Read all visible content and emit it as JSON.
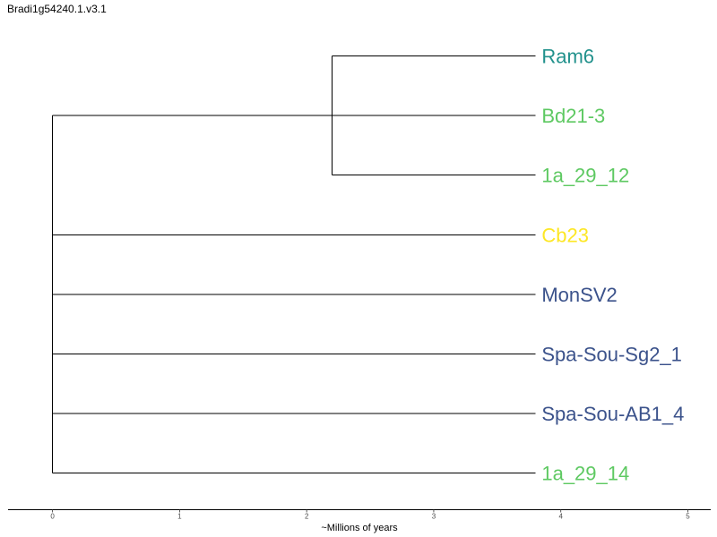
{
  "title": "Bradi1g54240.1.v3.1",
  "chart_data": {
    "type": "dendrogram",
    "xlabel": "~Millions of years",
    "xlim": [
      -0.35,
      5.18
    ],
    "xticks": [
      0,
      1,
      2,
      3,
      4,
      5
    ],
    "tips": [
      {
        "name": "Ram6",
        "color": "#21918c",
        "x": 3.8,
        "y": 1
      },
      {
        "name": "Bd21-3",
        "color": "#5ec962",
        "x": 3.8,
        "y": 2
      },
      {
        "name": "1a_29_12",
        "color": "#5ec962",
        "x": 3.8,
        "y": 3
      },
      {
        "name": "Cb23",
        "color": "#fde725",
        "x": 3.8,
        "y": 4
      },
      {
        "name": "MonSV2",
        "color": "#3b528b",
        "x": 3.8,
        "y": 5
      },
      {
        "name": "Spa-Sou-Sg2_1",
        "color": "#3b528b",
        "x": 3.8,
        "y": 6
      },
      {
        "name": "Spa-Sou-AB1_4",
        "color": "#3b528b",
        "x": 3.8,
        "y": 7
      },
      {
        "name": "1a_29_14",
        "color": "#5ec962",
        "x": 3.8,
        "y": 8
      }
    ],
    "branches": [
      {
        "x1": 2.2,
        "y1": 1,
        "x2": 3.8,
        "y2": 1
      },
      {
        "x1": 2.2,
        "y1": 3,
        "x2": 3.8,
        "y2": 3
      },
      {
        "x1": 2.2,
        "y1": 1,
        "x2": 2.2,
        "y2": 3
      },
      {
        "x1": 0.0,
        "y1": 2,
        "x2": 3.8,
        "y2": 2
      },
      {
        "x1": 0.0,
        "y1": 2,
        "x2": 0.0,
        "y2": 8
      },
      {
        "x1": 0.0,
        "y1": 4,
        "x2": 3.8,
        "y2": 4
      },
      {
        "x1": 0.0,
        "y1": 5,
        "x2": 3.8,
        "y2": 5
      },
      {
        "x1": 0.0,
        "y1": 6,
        "x2": 3.8,
        "y2": 6
      },
      {
        "x1": 0.0,
        "y1": 7,
        "x2": 3.8,
        "y2": 7
      },
      {
        "x1": 0.0,
        "y1": 8,
        "x2": 3.8,
        "y2": 8
      }
    ]
  }
}
